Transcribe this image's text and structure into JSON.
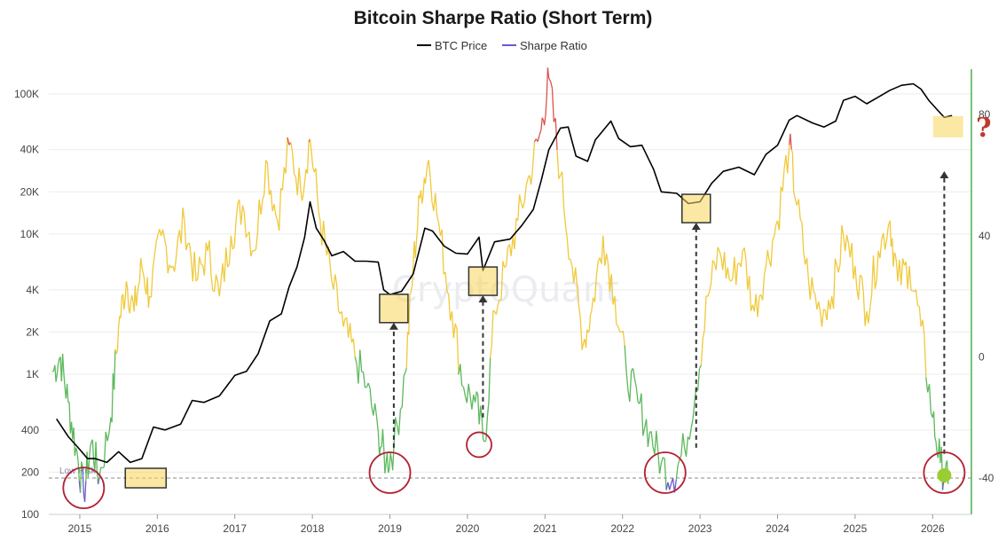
{
  "chart_data": {
    "type": "line",
    "title": "Bitcoin Sharpe Ratio (Short Term)",
    "legend": {
      "placement": "top-center",
      "entries": [
        {
          "name": "BTC Price",
          "color": "#000000"
        },
        {
          "name": "Sharpe Ratio",
          "color": "#6a5acd"
        }
      ]
    },
    "x_ticks": [
      "2015",
      "2016",
      "2017",
      "2018",
      "2019",
      "2020",
      "2021",
      "2022",
      "2023",
      "2024",
      "2025",
      "2026"
    ],
    "xlim": [
      2014.6,
      2026.5
    ],
    "y_left": {
      "scale": "log",
      "ticks": [
        "100K",
        "40K",
        "20K",
        "10K",
        "4K",
        "2K",
        "1K",
        "400",
        "200",
        "100"
      ],
      "tick_values": [
        100000,
        40000,
        20000,
        10000,
        4000,
        2000,
        1000,
        400,
        200,
        100
      ],
      "range": [
        100,
        150000
      ]
    },
    "y_right": {
      "ticks": [
        "80",
        "40",
        "0",
        "-40"
      ],
      "tick_values": [
        80,
        40,
        0,
        -40
      ],
      "range": [
        -52,
        95
      ]
    },
    "low_risk_label": "Low Risk",
    "low_risk_level": -40,
    "zone_colors": {
      "low": "#5cb85c",
      "mid": "#f0c93a",
      "high": "#d9534f",
      "extreme_low": "#6a5acd"
    },
    "watermark": "CryptoQuant",
    "annotation_symbol": "?",
    "series": [
      {
        "name": "BTC Price",
        "color": "#000000",
        "points": [
          [
            2014.7,
            480
          ],
          [
            2014.85,
            360
          ],
          [
            2015.0,
            290
          ],
          [
            2015.1,
            250
          ],
          [
            2015.2,
            250
          ],
          [
            2015.35,
            235
          ],
          [
            2015.5,
            280
          ],
          [
            2015.65,
            235
          ],
          [
            2015.8,
            250
          ],
          [
            2015.95,
            420
          ],
          [
            2016.1,
            400
          ],
          [
            2016.3,
            440
          ],
          [
            2016.45,
            650
          ],
          [
            2016.6,
            630
          ],
          [
            2016.8,
            700
          ],
          [
            2017.0,
            980
          ],
          [
            2017.15,
            1050
          ],
          [
            2017.3,
            1400
          ],
          [
            2017.45,
            2400
          ],
          [
            2017.6,
            2700
          ],
          [
            2017.7,
            4200
          ],
          [
            2017.8,
            5800
          ],
          [
            2017.9,
            9500
          ],
          [
            2017.97,
            17000
          ],
          [
            2018.05,
            11000
          ],
          [
            2018.15,
            9000
          ],
          [
            2018.25,
            7000
          ],
          [
            2018.4,
            7500
          ],
          [
            2018.55,
            6400
          ],
          [
            2018.7,
            6400
          ],
          [
            2018.85,
            6300
          ],
          [
            2018.92,
            4000
          ],
          [
            2019.0,
            3700
          ],
          [
            2019.15,
            3900
          ],
          [
            2019.3,
            5200
          ],
          [
            2019.45,
            11000
          ],
          [
            2019.55,
            10500
          ],
          [
            2019.7,
            8200
          ],
          [
            2019.85,
            7300
          ],
          [
            2020.0,
            7200
          ],
          [
            2020.15,
            9500
          ],
          [
            2020.2,
            5500
          ],
          [
            2020.35,
            8800
          ],
          [
            2020.55,
            9200
          ],
          [
            2020.7,
            11500
          ],
          [
            2020.85,
            15000
          ],
          [
            2020.95,
            24000
          ],
          [
            2021.05,
            40000
          ],
          [
            2021.2,
            57000
          ],
          [
            2021.3,
            58000
          ],
          [
            2021.4,
            36000
          ],
          [
            2021.55,
            33000
          ],
          [
            2021.65,
            47000
          ],
          [
            2021.85,
            64000
          ],
          [
            2021.95,
            48000
          ],
          [
            2022.1,
            42000
          ],
          [
            2022.25,
            43000
          ],
          [
            2022.4,
            29000
          ],
          [
            2022.5,
            20000
          ],
          [
            2022.7,
            19500
          ],
          [
            2022.85,
            16500
          ],
          [
            2023.0,
            17000
          ],
          [
            2023.15,
            23000
          ],
          [
            2023.3,
            28000
          ],
          [
            2023.5,
            30000
          ],
          [
            2023.7,
            26500
          ],
          [
            2023.85,
            37000
          ],
          [
            2024.0,
            43000
          ],
          [
            2024.15,
            65000
          ],
          [
            2024.25,
            70000
          ],
          [
            2024.45,
            62000
          ],
          [
            2024.6,
            58000
          ],
          [
            2024.75,
            64000
          ],
          [
            2024.85,
            90000
          ],
          [
            2025.0,
            96000
          ],
          [
            2025.15,
            85000
          ],
          [
            2025.3,
            95000
          ],
          [
            2025.45,
            106000
          ],
          [
            2025.6,
            115000
          ],
          [
            2025.75,
            118000
          ],
          [
            2025.85,
            108000
          ],
          [
            2025.95,
            90000
          ],
          [
            2026.05,
            78000
          ],
          [
            2026.15,
            68000
          ],
          [
            2026.25,
            70000
          ]
        ]
      },
      {
        "name": "Sharpe Ratio",
        "color": "#6a5acd",
        "points": [
          [
            2014.65,
            -5
          ],
          [
            2014.75,
            0
          ],
          [
            2014.85,
            -15
          ],
          [
            2014.95,
            -30
          ],
          [
            2015.05,
            -45
          ],
          [
            2015.15,
            -28
          ],
          [
            2015.25,
            -40
          ],
          [
            2015.4,
            -20
          ],
          [
            2015.5,
            10
          ],
          [
            2015.6,
            25
          ],
          [
            2015.7,
            15
          ],
          [
            2015.8,
            30
          ],
          [
            2015.9,
            20
          ],
          [
            2016.05,
            40
          ],
          [
            2016.2,
            30
          ],
          [
            2016.35,
            45
          ],
          [
            2016.5,
            25
          ],
          [
            2016.65,
            35
          ],
          [
            2016.8,
            20
          ],
          [
            2016.95,
            40
          ],
          [
            2017.1,
            50
          ],
          [
            2017.25,
            35
          ],
          [
            2017.4,
            65
          ],
          [
            2017.55,
            45
          ],
          [
            2017.7,
            70
          ],
          [
            2017.85,
            55
          ],
          [
            2017.97,
            72
          ],
          [
            2018.1,
            45
          ],
          [
            2018.25,
            25
          ],
          [
            2018.4,
            10
          ],
          [
            2018.55,
            0
          ],
          [
            2018.7,
            -10
          ],
          [
            2018.85,
            -25
          ],
          [
            2018.95,
            -35
          ],
          [
            2019.05,
            -30
          ],
          [
            2019.2,
            -5
          ],
          [
            2019.3,
            30
          ],
          [
            2019.4,
            55
          ],
          [
            2019.5,
            65
          ],
          [
            2019.65,
            40
          ],
          [
            2019.8,
            15
          ],
          [
            2019.95,
            -10
          ],
          [
            2020.1,
            -15
          ],
          [
            2020.22,
            -28
          ],
          [
            2020.35,
            15
          ],
          [
            2020.5,
            30
          ],
          [
            2020.65,
            45
          ],
          [
            2020.8,
            60
          ],
          [
            2020.95,
            75
          ],
          [
            2021.05,
            92
          ],
          [
            2021.2,
            60
          ],
          [
            2021.35,
            30
          ],
          [
            2021.5,
            5
          ],
          [
            2021.6,
            15
          ],
          [
            2021.75,
            40
          ],
          [
            2021.9,
            20
          ],
          [
            2022.05,
            -5
          ],
          [
            2022.2,
            -15
          ],
          [
            2022.35,
            -25
          ],
          [
            2022.5,
            -35
          ],
          [
            2022.65,
            -40
          ],
          [
            2022.8,
            -30
          ],
          [
            2022.95,
            -10
          ],
          [
            2023.1,
            20
          ],
          [
            2023.25,
            35
          ],
          [
            2023.4,
            25
          ],
          [
            2023.55,
            35
          ],
          [
            2023.7,
            15
          ],
          [
            2023.85,
            30
          ],
          [
            2024.0,
            45
          ],
          [
            2024.15,
            70
          ],
          [
            2024.25,
            50
          ],
          [
            2024.4,
            25
          ],
          [
            2024.55,
            15
          ],
          [
            2024.7,
            20
          ],
          [
            2024.85,
            40
          ],
          [
            2025.0,
            30
          ],
          [
            2025.15,
            15
          ],
          [
            2025.3,
            35
          ],
          [
            2025.45,
            45
          ],
          [
            2025.55,
            25
          ],
          [
            2025.7,
            30
          ],
          [
            2025.85,
            10
          ],
          [
            2026.0,
            -20
          ],
          [
            2026.1,
            -35
          ],
          [
            2026.2,
            -42
          ]
        ]
      }
    ],
    "annotations": {
      "circles": [
        [
          2015.05,
          -45
        ],
        [
          2019.0,
          -40
        ],
        [
          2020.15,
          -29
        ],
        [
          2022.55,
          -40
        ],
        [
          2026.15,
          -40
        ]
      ],
      "boxes": [
        [
          2015.85,
          -40
        ],
        [
          2019.05,
          16
        ],
        [
          2020.2,
          25
        ],
        [
          2022.95,
          49
        ],
        [
          2026.2,
          76
        ]
      ],
      "arrows": [
        [
          2019.05,
          -30,
          16
        ],
        [
          2020.2,
          -20,
          25
        ],
        [
          2022.95,
          -30,
          49
        ],
        [
          2026.15,
          -32,
          66
        ]
      ]
    }
  }
}
